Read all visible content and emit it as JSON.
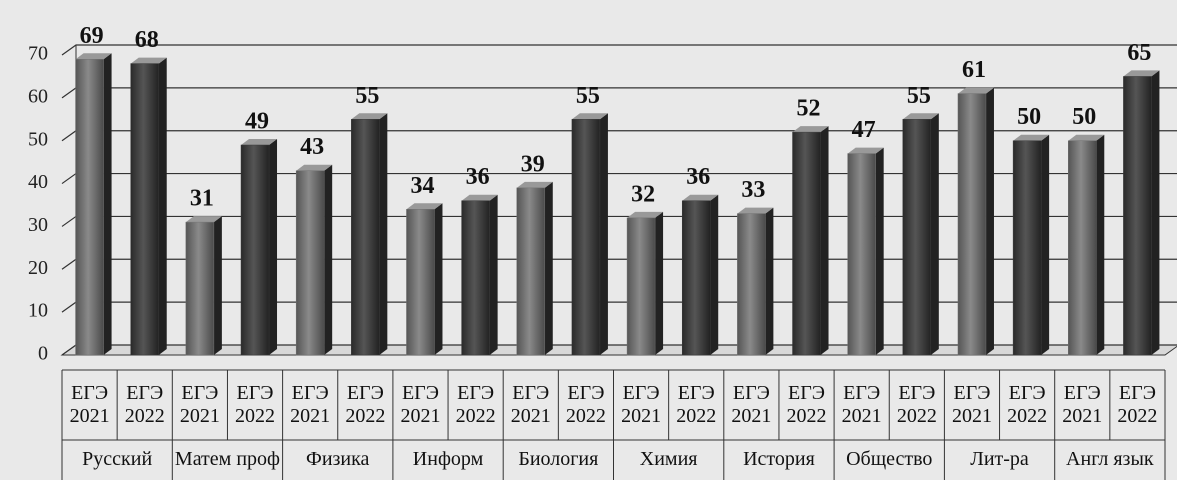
{
  "chart_data": {
    "type": "bar",
    "categories": [
      "Русский",
      "Матем проф",
      "Физика",
      "Информ",
      "Биология",
      "Химия",
      "История",
      "Общество",
      "Лит-ра",
      "Англ язык"
    ],
    "series": [
      {
        "name": "ЕГЭ 2021",
        "color": "#707070",
        "values": [
          69,
          31,
          43,
          34,
          39,
          32,
          33,
          47,
          61,
          50
        ]
      },
      {
        "name": "ЕГЭ 2022",
        "color": "#3a3a3a",
        "values": [
          68,
          49,
          55,
          36,
          55,
          36,
          52,
          55,
          50,
          65
        ]
      }
    ],
    "ylim": [
      0,
      70
    ],
    "yticks": [
      0,
      10,
      20,
      30,
      40,
      50,
      60,
      70
    ],
    "grid": true
  }
}
